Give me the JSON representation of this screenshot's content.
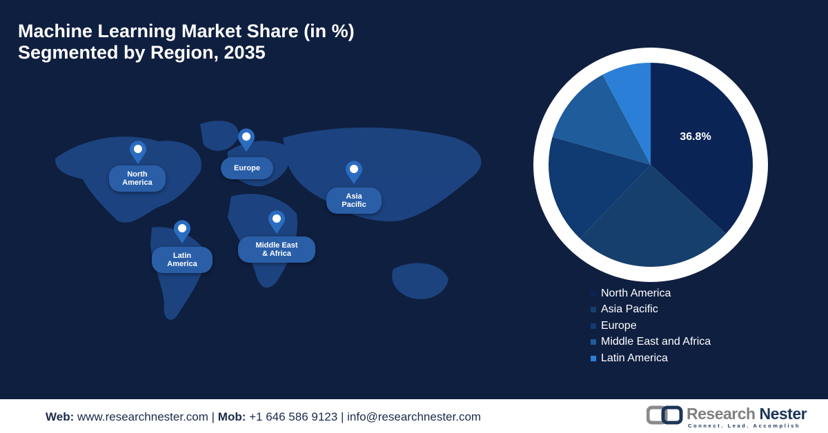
{
  "title_line1": "Machine Learning Market Share (in %)",
  "title_line2": "Segmented by Region, 2035",
  "map_labels": [
    {
      "line1": "North",
      "line2": "America"
    },
    {
      "line1": "Europe",
      "line2": ""
    },
    {
      "line1": "Asia",
      "line2": "Pacific"
    },
    {
      "line1": "Latin",
      "line2": "America"
    },
    {
      "line1": "Middle East",
      "line2": "& Africa"
    }
  ],
  "chart_data": {
    "type": "pie",
    "categories": [
      "North America",
      "Asia Pacific",
      "Europe",
      "Middle East and Africa",
      "Latin America"
    ],
    "values": [
      36.8,
      25.4,
      17.2,
      12.8,
      7.8
    ],
    "colors": [
      "#0b2456",
      "#173f6d",
      "#0f3a72",
      "#1f5c9b",
      "#2b7fd6"
    ],
    "data_labels": [
      "36.8%"
    ],
    "legend_position": "bottom"
  },
  "footer": {
    "web_label": "Web:",
    "web": "www.researchnester.com",
    "mob_label": "Mob:",
    "mob": "+1 646 586 9123",
    "email": "info@researchnester.com",
    "sep": "|",
    "logo_text_1": "Research",
    "logo_text_2": "Nester",
    "logo_tagline": "Connect. Lead. Accomplish"
  }
}
